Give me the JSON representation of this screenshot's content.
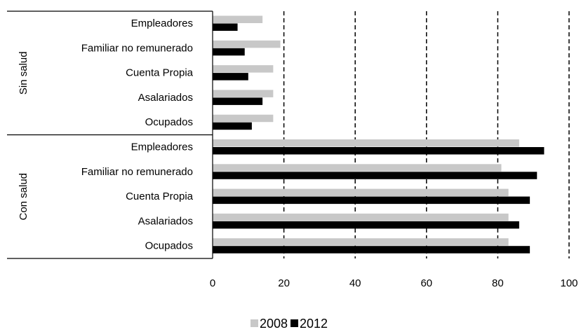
{
  "chart_data": {
    "type": "bar",
    "orientation": "horizontal",
    "title": "",
    "xlabel": "",
    "ylabel": "",
    "xlim": [
      0,
      100
    ],
    "xticks": [
      "0",
      "20",
      "40",
      "60",
      "80",
      "100"
    ],
    "grid": "dashed vertical",
    "legend_position": "bottom",
    "groups": [
      {
        "label": "Sin salud",
        "categories": [
          "Empleadores",
          "Familiar no remunerado",
          "Cuenta Propia",
          "Asalariados",
          "Ocupados"
        ],
        "series": [
          {
            "name": "2008",
            "color": "#c8c8c8",
            "values": [
              14,
              19,
              17,
              17,
              17
            ]
          },
          {
            "name": "2012",
            "color": "#000000",
            "values": [
              7,
              9,
              10,
              14,
              11
            ]
          }
        ]
      },
      {
        "label": "Con salud",
        "categories": [
          "Empleadores",
          "Familiar no remunerado",
          "Cuenta Propia",
          "Asalariados",
          "Ocupados"
        ],
        "series": [
          {
            "name": "2008",
            "color": "#c8c8c8",
            "values": [
              86,
              81,
              83,
              83,
              83
            ]
          },
          {
            "name": "2012",
            "color": "#000000",
            "values": [
              93,
              91,
              89,
              86,
              89
            ]
          }
        ]
      }
    ],
    "legend": [
      {
        "name": "2008",
        "color": "#c8c8c8"
      },
      {
        "name": "2012",
        "color": "#000000"
      }
    ]
  }
}
